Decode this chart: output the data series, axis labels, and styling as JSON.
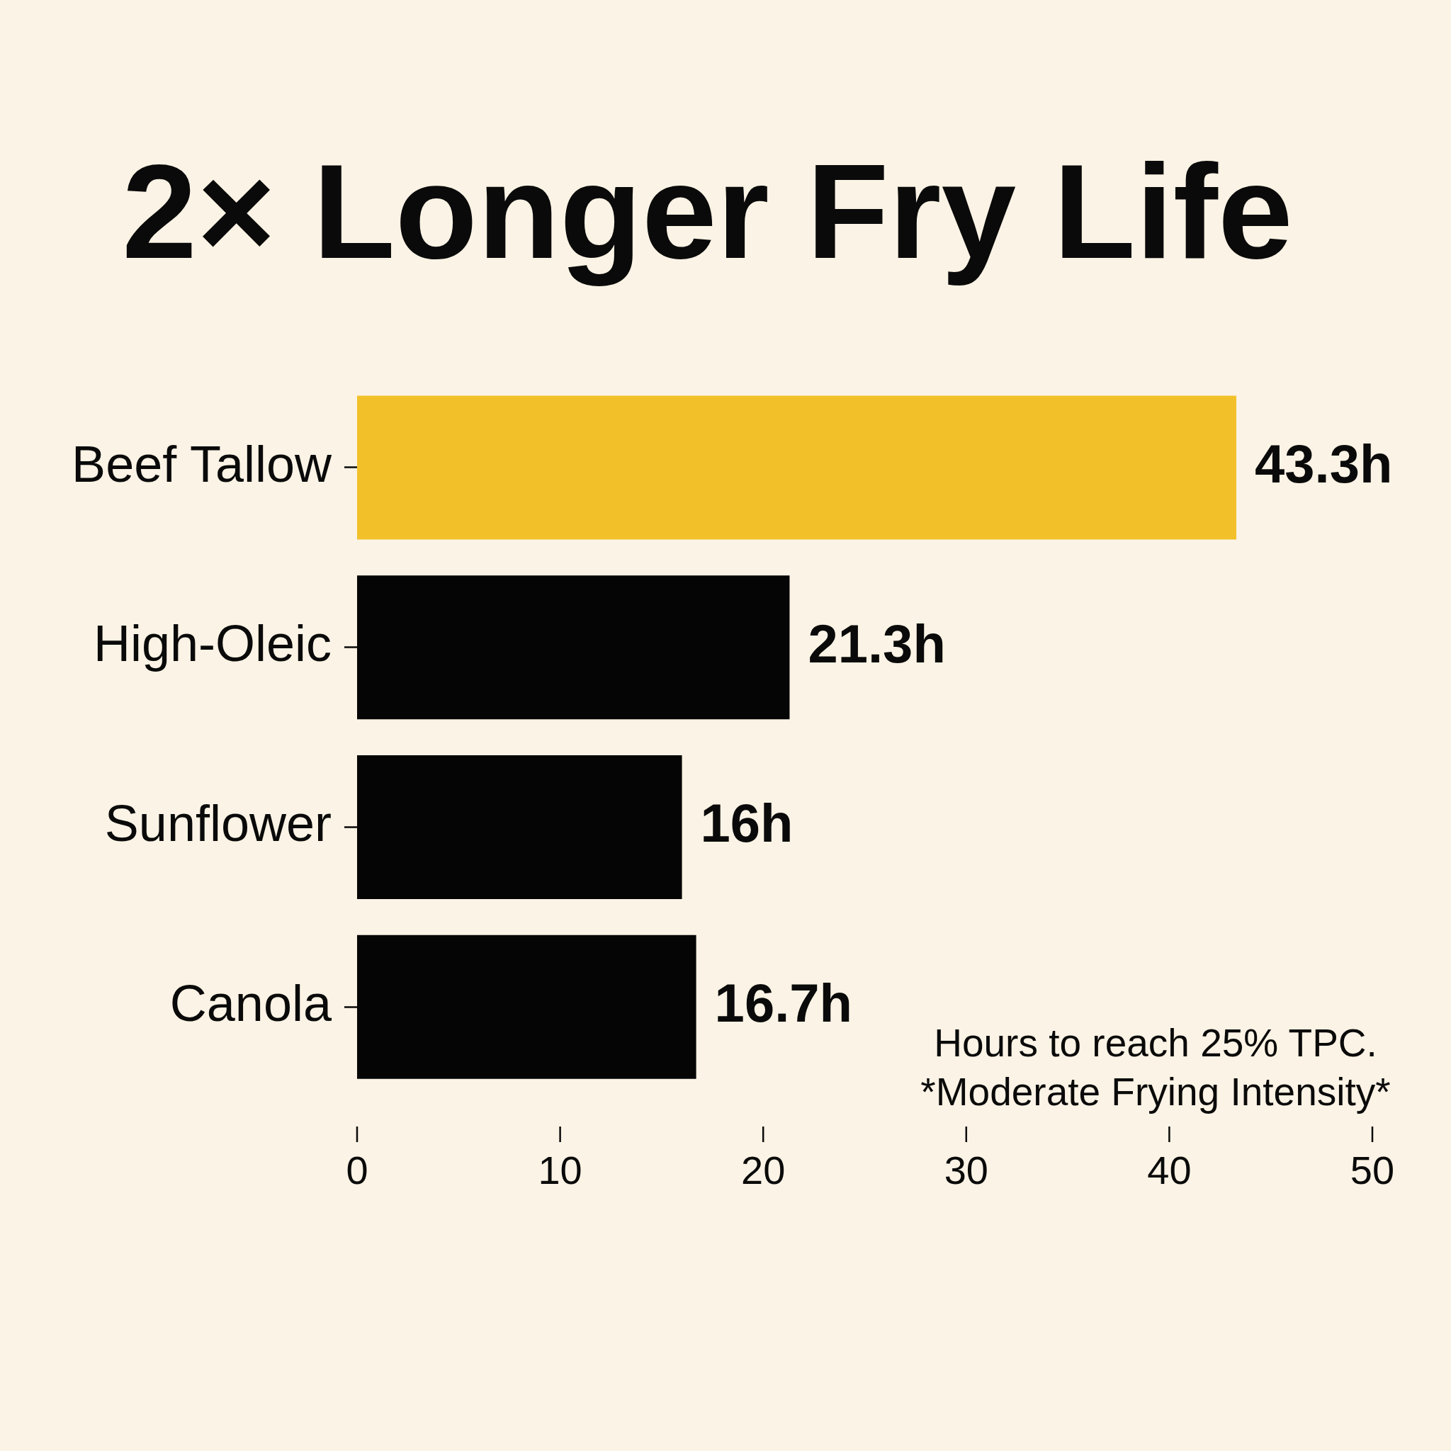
{
  "chart_data": {
    "type": "bar",
    "orientation": "horizontal",
    "title": "2× Longer Fry Life",
    "categories": [
      "Beef Tallow",
      "High-Oleic",
      "Sunflower",
      "Canola"
    ],
    "values": [
      43.3,
      21.3,
      16,
      16.7
    ],
    "colors": [
      "#f2c12a",
      "#050505",
      "#050505",
      "#050505"
    ],
    "value_labels": [
      "43.3h",
      "21.3h",
      "16h",
      "16.7h"
    ],
    "xlim": [
      0,
      50
    ],
    "xticks": [
      0,
      10,
      20,
      30,
      40,
      50
    ],
    "grid": false,
    "legend": false,
    "annotations": [
      "Hours to reach 25% TPC.",
      "*Moderate Frying Intensity*"
    ]
  }
}
